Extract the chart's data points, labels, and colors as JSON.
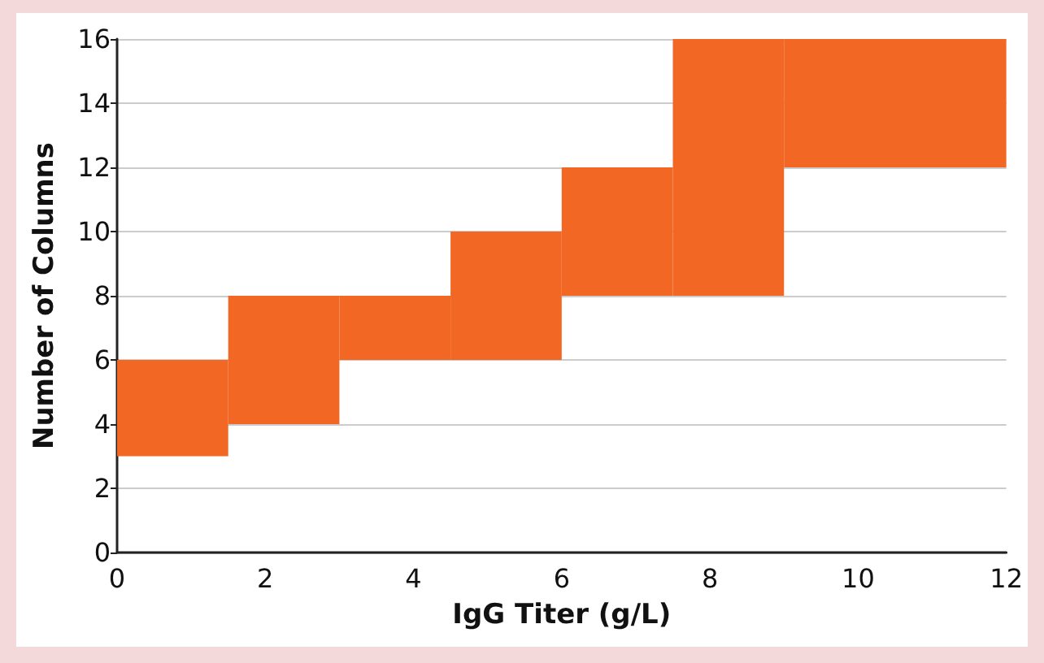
{
  "chart_data": {
    "type": "histogram",
    "xlabel": "IgG Titer (g/L)",
    "ylabel": "Number of Columns",
    "bins": [
      0,
      1.5,
      3,
      4.5,
      6,
      7.5,
      9,
      12
    ],
    "values": [
      3,
      4,
      2,
      4,
      4,
      8,
      4
    ],
    "base": [
      3,
      4,
      6,
      6,
      8,
      8,
      12
    ],
    "color": "#f26724",
    "xlim": [
      0,
      12
    ],
    "xticks": [
      0,
      2,
      4,
      6,
      8,
      10,
      12
    ],
    "ylim": [
      0,
      16
    ],
    "yticks": [
      0,
      2,
      4,
      6,
      8,
      10,
      12,
      14,
      16
    ],
    "grid": "y"
  }
}
